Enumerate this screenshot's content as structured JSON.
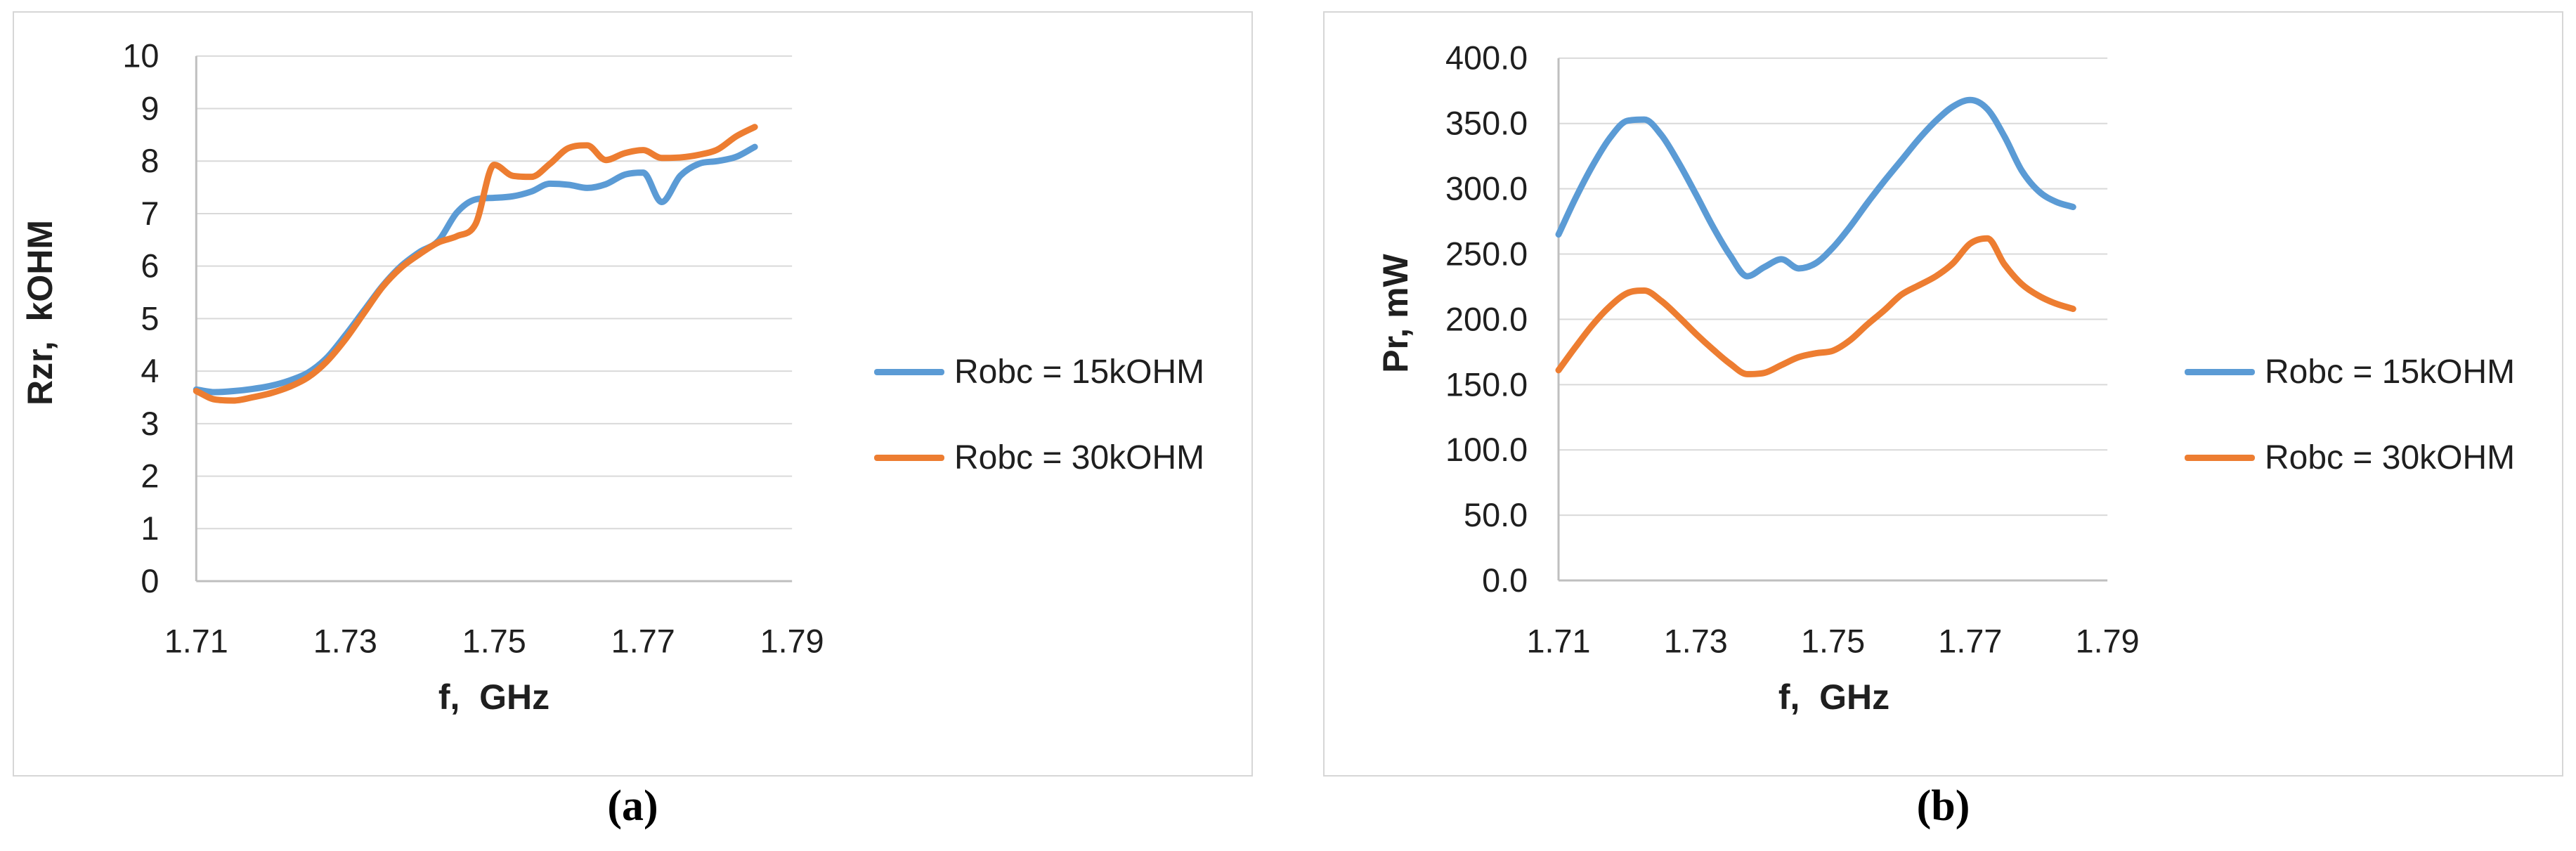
{
  "figure": {
    "captions": {
      "a": "(a)",
      "b": "(b)"
    },
    "background": "#ffffff",
    "panel_border": "#d6d6d6",
    "text_color": "#1f1f1f",
    "gridline_color": "#d9d9d9",
    "axis_line_color": "#bfbfbf"
  },
  "chart_data": [
    {
      "id": "a",
      "type": "line",
      "title": "",
      "xlabel": "f,  GHz",
      "ylabel": "Rzr,  kOHM",
      "xlim": [
        1.71,
        1.79
      ],
      "ylim": [
        0,
        10
      ],
      "grid": "horizontal",
      "legend_position": "right-outside",
      "xticks": [
        1.71,
        1.73,
        1.75,
        1.77,
        1.79
      ],
      "xtick_labels": [
        "1.71",
        "1.73",
        "1.75",
        "1.77",
        "1.79"
      ],
      "yticks": [
        0,
        1,
        2,
        3,
        4,
        5,
        6,
        7,
        8,
        9,
        10
      ],
      "ytick_labels": [
        "0",
        "1",
        "2",
        "3",
        "4",
        "5",
        "6",
        "7",
        "8",
        "9",
        "10"
      ],
      "x": [
        1.71,
        1.7125,
        1.715,
        1.7175,
        1.72,
        1.7225,
        1.725,
        1.7275,
        1.73,
        1.7325,
        1.735,
        1.7375,
        1.74,
        1.7425,
        1.745,
        1.7475,
        1.75,
        1.7525,
        1.755,
        1.7575,
        1.76,
        1.7625,
        1.765,
        1.7675,
        1.77,
        1.7725,
        1.775,
        1.7775,
        1.78,
        1.7825,
        1.785
      ],
      "series": [
        {
          "name": "Robc = 15kOHM",
          "color": "#5B9BD5",
          "values": [
            3.65,
            3.6,
            3.62,
            3.66,
            3.72,
            3.82,
            3.97,
            4.25,
            4.68,
            5.15,
            5.62,
            6.0,
            6.27,
            6.48,
            7.02,
            7.27,
            7.3,
            7.33,
            7.42,
            7.57,
            7.55,
            7.49,
            7.56,
            7.74,
            7.78,
            7.22,
            7.72,
            7.95,
            8.0,
            8.08,
            8.27
          ]
        },
        {
          "name": "Robc = 30kOHM",
          "color": "#ED7D31",
          "values": [
            3.62,
            3.46,
            3.44,
            3.5,
            3.58,
            3.7,
            3.88,
            4.18,
            4.6,
            5.1,
            5.6,
            5.97,
            6.23,
            6.45,
            6.57,
            6.8,
            7.93,
            7.72,
            7.7,
            7.95,
            8.25,
            8.3,
            8.02,
            8.15,
            8.21,
            8.06,
            8.07,
            8.12,
            8.22,
            8.47,
            8.65
          ]
        }
      ]
    },
    {
      "id": "b",
      "type": "line",
      "title": "",
      "xlabel": "f,  GHz",
      "ylabel": "Pr, mW",
      "xlim": [
        1.71,
        1.79
      ],
      "ylim": [
        0,
        400
      ],
      "grid": "horizontal",
      "legend_position": "right-outside",
      "xticks": [
        1.71,
        1.73,
        1.75,
        1.77,
        1.79
      ],
      "xtick_labels": [
        "1.71",
        "1.73",
        "1.75",
        "1.77",
        "1.79"
      ],
      "yticks": [
        0,
        50,
        100,
        150,
        200,
        250,
        300,
        350,
        400
      ],
      "ytick_labels": [
        "0.0",
        "50.0",
        "100.0",
        "150.0",
        "200.0",
        "250.0",
        "300.0",
        "350.0",
        "400.0"
      ],
      "x": [
        1.71,
        1.7125,
        1.715,
        1.7175,
        1.72,
        1.7225,
        1.725,
        1.7275,
        1.73,
        1.7325,
        1.735,
        1.7375,
        1.74,
        1.7425,
        1.745,
        1.7475,
        1.75,
        1.7525,
        1.755,
        1.7575,
        1.76,
        1.7625,
        1.765,
        1.7675,
        1.77,
        1.7725,
        1.775,
        1.7775,
        1.78,
        1.7825,
        1.785
      ],
      "series": [
        {
          "name": "Robc = 15kOHM",
          "color": "#5B9BD5",
          "values": [
            265,
            293,
            318,
            339,
            352,
            353,
            341,
            320,
            296,
            271,
            249,
            233,
            240,
            246,
            239,
            243,
            255,
            271,
            289,
            306,
            322,
            338,
            352,
            363,
            368,
            361,
            340,
            314,
            298,
            290,
            286
          ]
        },
        {
          "name": "Robc = 30kOHM",
          "color": "#ED7D31",
          "values": [
            161,
            179,
            196,
            210,
            220,
            222,
            214,
            202,
            189,
            177,
            166,
            158,
            159,
            165,
            171,
            174,
            176,
            184,
            196,
            207,
            219,
            226,
            233,
            243,
            258,
            262,
            242,
            227,
            218,
            212,
            208
          ]
        }
      ]
    }
  ]
}
